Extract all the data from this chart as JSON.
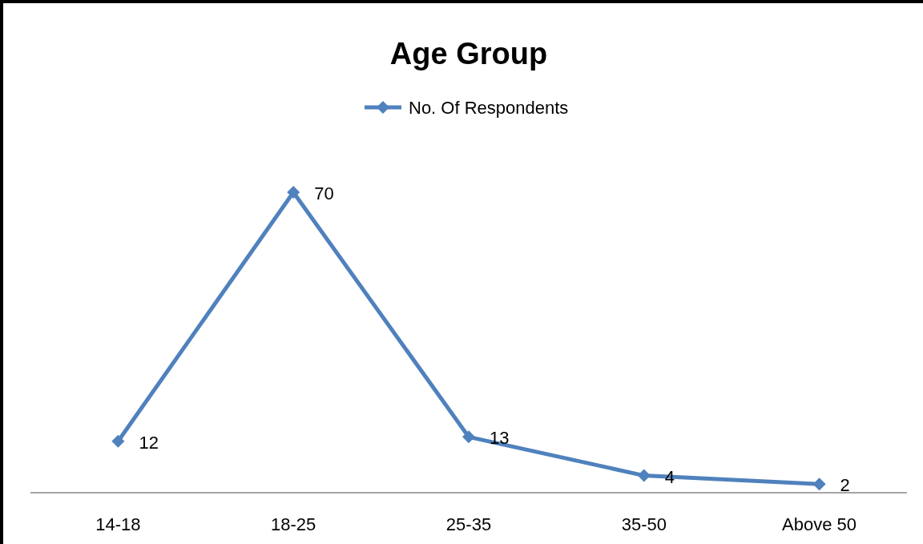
{
  "chart_data": {
    "type": "line",
    "title": "Age Group",
    "categories": [
      "14-18",
      "18-25",
      "25-35",
      "35-50",
      "Above 50"
    ],
    "series": [
      {
        "name": "No. Of Respondents",
        "color": "#4f81bd",
        "values": [
          12,
          70,
          13,
          4,
          2
        ]
      }
    ],
    "tick_labels": "x",
    "data_labels": true,
    "legend": "top",
    "marker": "diamond",
    "line_style": "solid",
    "grid": false
  }
}
